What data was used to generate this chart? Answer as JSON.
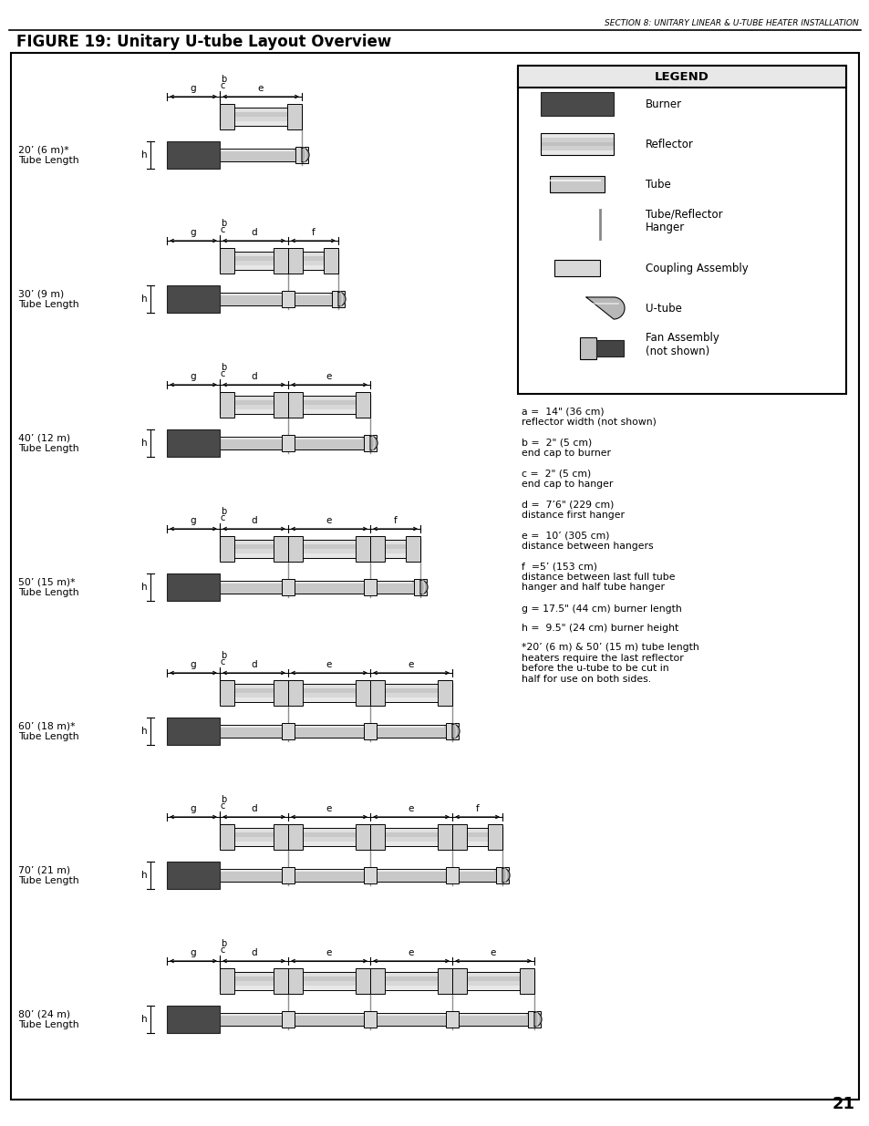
{
  "title": "FIGURE 19: Unitary U-tube Layout Overview",
  "header_text": "SECTION 8: UNITARY LINEAR & U-TUBE HEATER INSTALLATION",
  "page_number": "21",
  "legend_title": "LEGEND",
  "legend_notes": [
    "a =  14\" (36 cm)\nreflector width (not shown)",
    "b =  2\" (5 cm)\nend cap to burner",
    "c =  2\" (5 cm)\nend cap to hanger",
    "d =  7’6\" (229 cm)\ndistance first hanger",
    "e =  10’ (305 cm)\ndistance between hangers",
    "f  =5’ (153 cm)\ndistance between last full tube\nhanger and half tube hanger",
    "g = 17.5\" (44 cm) burner length",
    "h =  9.5\" (24 cm) burner height",
    "*20’ (6 m) & 50’ (15 m) tube length\nheaters require the last reflector\nbefore the u-tube to be cut in\nhalf for use on both sides."
  ],
  "configs": [
    {
      "label": "20’ (6 m)*\nTube Length",
      "d": false,
      "e_count": 0,
      "f": false
    },
    {
      "label": "30’ (9 m)\nTube Length",
      "d": true,
      "e_count": 0,
      "f": true
    },
    {
      "label": "40’ (12 m)\nTube Length",
      "d": true,
      "e_count": 1,
      "f": false
    },
    {
      "label": "50’ (15 m)*\nTube Length",
      "d": true,
      "e_count": 1,
      "f": true
    },
    {
      "label": "60’ (18 m)*\nTube Length",
      "d": true,
      "e_count": 2,
      "f": false
    },
    {
      "label": "70’ (21 m)\nTube Length",
      "d": true,
      "e_count": 2,
      "f": true
    },
    {
      "label": "80’ (24 m)\nTube Length",
      "d": true,
      "e_count": 3,
      "f": false
    }
  ],
  "burner_color": "#4a4a4a",
  "bg": "#ffffff"
}
